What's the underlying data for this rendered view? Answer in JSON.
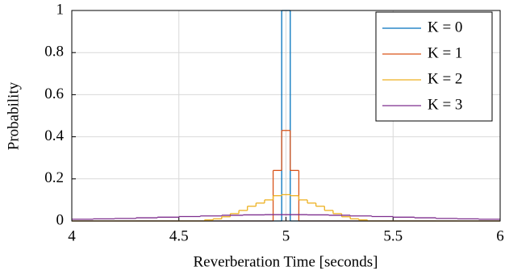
{
  "chart_data": {
    "type": "histogram",
    "xlabel": "Reverberation Time [seconds]",
    "ylabel": "Probability",
    "xlim": [
      4,
      6
    ],
    "xticks": [
      4,
      4.5,
      5,
      5.5,
      6
    ],
    "ylim": [
      0,
      1
    ],
    "yticks": [
      0,
      0.2,
      0.4,
      0.6,
      0.8,
      1
    ],
    "grid": true,
    "legend": "upper right",
    "series": [
      {
        "name": "K = 0",
        "color": "#0072bd",
        "bins": [
          4,
          4.98,
          5.02,
          6
        ],
        "values": [
          0,
          1,
          0
        ]
      },
      {
        "name": "K = 1",
        "color": "#d95319",
        "bins": [
          4,
          4.94,
          4.98,
          5.02,
          5.06,
          6
        ],
        "values": [
          0,
          0.24,
          0.43,
          0.24,
          0
        ]
      },
      {
        "name": "K = 2",
        "color": "#edb120",
        "bins": [
          4,
          4.62,
          4.66,
          4.7,
          4.74,
          4.78,
          4.82,
          4.86,
          4.9,
          4.94,
          4.98,
          5.02,
          5.06,
          5.1,
          5.14,
          5.18,
          5.22,
          5.26,
          5.3,
          5.34,
          5.38,
          6
        ],
        "values": [
          0,
          0.005,
          0.01,
          0.02,
          0.035,
          0.05,
          0.07,
          0.085,
          0.1,
          0.12,
          0.125,
          0.12,
          0.1,
          0.085,
          0.07,
          0.05,
          0.035,
          0.02,
          0.01,
          0.005,
          0
        ]
      },
      {
        "name": "K = 3",
        "color": "#7e2f8e",
        "bins": [
          4,
          4.1,
          4.2,
          4.3,
          4.4,
          4.5,
          4.6,
          4.7,
          4.8,
          4.9,
          5,
          5.1,
          5.2,
          5.3,
          5.4,
          5.5,
          5.6,
          5.7,
          5.8,
          5.9,
          6
        ],
        "values": [
          0.008,
          0.01,
          0.012,
          0.015,
          0.018,
          0.021,
          0.024,
          0.027,
          0.029,
          0.03,
          0.03,
          0.029,
          0.027,
          0.024,
          0.021,
          0.018,
          0.015,
          0.012,
          0.01,
          0.008
        ]
      }
    ]
  }
}
